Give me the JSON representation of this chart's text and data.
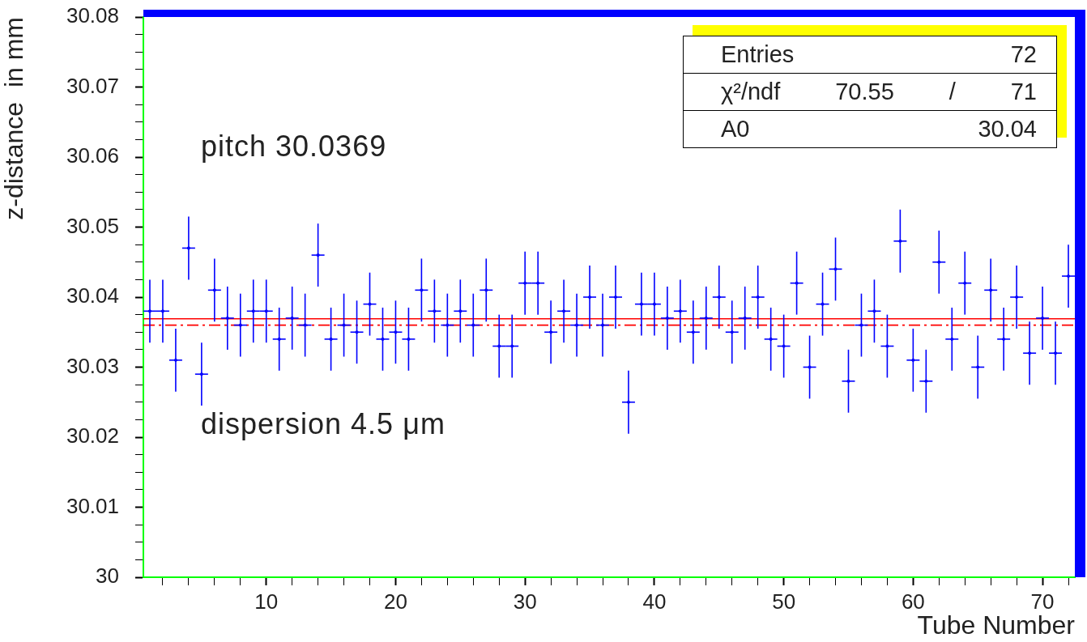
{
  "chart_data": {
    "type": "scatter",
    "xlabel": "Tube Number",
    "ylabel": "z-distance  in mm",
    "x": [
      1,
      2,
      3,
      4,
      5,
      6,
      7,
      8,
      9,
      10,
      11,
      12,
      13,
      14,
      15,
      16,
      17,
      18,
      19,
      20,
      21,
      22,
      23,
      24,
      25,
      26,
      27,
      28,
      29,
      30,
      31,
      32,
      33,
      34,
      35,
      36,
      37,
      38,
      39,
      40,
      41,
      42,
      43,
      44,
      45,
      46,
      47,
      48,
      49,
      50,
      51,
      52,
      53,
      54,
      55,
      56,
      57,
      58,
      59,
      60,
      61,
      62,
      63,
      64,
      65,
      66,
      67,
      68,
      69,
      70,
      71,
      72
    ],
    "series": [
      {
        "color": "#0000ff",
        "values": [
          30.038,
          30.038,
          30.031,
          30.047,
          30.029,
          30.041,
          30.037,
          30.036,
          30.038,
          30.038,
          30.034,
          30.037,
          30.036,
          30.046,
          30.034,
          30.036,
          30.035,
          30.039,
          30.034,
          30.035,
          30.034,
          30.041,
          30.038,
          30.036,
          30.038,
          30.036,
          30.041,
          30.033,
          30.033,
          30.042,
          30.042,
          30.035,
          30.038,
          30.036,
          30.04,
          30.036,
          30.04,
          30.025,
          30.039,
          30.039,
          30.037,
          30.038,
          30.035,
          30.037,
          30.04,
          30.035,
          30.037,
          30.04,
          30.034,
          30.033,
          30.042,
          30.03,
          30.039,
          30.044,
          30.028,
          30.036,
          30.038,
          30.033,
          30.048,
          30.031,
          30.028,
          30.045,
          30.034,
          30.042,
          30.03,
          30.041,
          30.034,
          30.04,
          30.032,
          30.037,
          30.032,
          30.043
        ],
        "errors": [
          0.0045,
          0.0045,
          0.0045,
          0.0045,
          0.0045,
          0.0045,
          0.0045,
          0.0045,
          0.0045,
          0.0045,
          0.0045,
          0.0045,
          0.0045,
          0.0045,
          0.0045,
          0.0045,
          0.0045,
          0.0045,
          0.0045,
          0.0045,
          0.0045,
          0.0045,
          0.0045,
          0.0045,
          0.0045,
          0.0045,
          0.0045,
          0.0045,
          0.0045,
          0.0045,
          0.0045,
          0.0045,
          0.0045,
          0.0045,
          0.0045,
          0.0045,
          0.0045,
          0.0045,
          0.0045,
          0.0045,
          0.0045,
          0.0045,
          0.0045,
          0.0045,
          0.0045,
          0.0045,
          0.0045,
          0.0045,
          0.0045,
          0.0045,
          0.0045,
          0.0045,
          0.0045,
          0.0045,
          0.0045,
          0.0045,
          0.0045,
          0.0045,
          0.0045,
          0.0045,
          0.0045,
          0.0045,
          0.0045,
          0.0045,
          0.0045,
          0.0045,
          0.0045,
          0.0045,
          0.0045,
          0.0045,
          0.0045,
          0.0045
        ],
        "xerrors": [
          0.5,
          0.5,
          0.5,
          0.5,
          0.5,
          0.5,
          0.5,
          0.5,
          0.5,
          0.5,
          0.5,
          0.5,
          0.5,
          0.5,
          0.5,
          0.5,
          0.5,
          0.5,
          0.5,
          0.5,
          0.5,
          0.5,
          0.5,
          0.5,
          0.5,
          0.5,
          0.5,
          0.5,
          0.5,
          0.5,
          0.5,
          0.5,
          0.5,
          0.5,
          0.5,
          0.5,
          0.5,
          0.5,
          0.5,
          0.5,
          0.5,
          0.5,
          0.5,
          0.5,
          0.5,
          0.5,
          0.5,
          0.5,
          0.5,
          0.5,
          0.5,
          0.5,
          0.5,
          0.5,
          0.5,
          0.5,
          0.5,
          0.5,
          0.5,
          0.5,
          0.5,
          0.5,
          0.5,
          0.5,
          0.5,
          0.5,
          0.5,
          0.5,
          0.5,
          0.5,
          0.5,
          0.5
        ]
      }
    ],
    "legend": false,
    "grid": false,
    "xlim": [
      0.5,
      72.5
    ],
    "xticks": [
      {
        "value": 2,
        "label": null
      },
      {
        "value": 4,
        "label": null
      },
      {
        "value": 6,
        "label": null
      },
      {
        "value": 8,
        "label": null
      },
      10,
      {
        "value": 12,
        "label": null
      },
      {
        "value": 14,
        "label": null
      },
      {
        "value": 16,
        "label": null
      },
      {
        "value": 18,
        "label": null
      },
      20,
      {
        "value": 22,
        "label": null
      },
      {
        "value": 24,
        "label": null
      },
      {
        "value": 26,
        "label": null
      },
      {
        "value": 28,
        "label": null
      },
      30,
      {
        "value": 32,
        "label": null
      },
      {
        "value": 34,
        "label": null
      },
      {
        "value": 36,
        "label": null
      },
      {
        "value": 38,
        "label": null
      },
      40,
      {
        "value": 42,
        "label": null
      },
      {
        "value": 44,
        "label": null
      },
      {
        "value": 46,
        "label": null
      },
      {
        "value": 48,
        "label": null
      },
      50,
      {
        "value": 52,
        "label": null
      },
      {
        "value": 54,
        "label": null
      },
      {
        "value": 56,
        "label": null
      },
      {
        "value": 58,
        "label": null
      },
      60,
      {
        "value": 62,
        "label": null
      },
      {
        "value": 64,
        "label": null
      },
      {
        "value": 66,
        "label": null
      },
      {
        "value": 68,
        "label": null
      },
      70,
      {
        "value": 72,
        "label": null
      }
    ],
    "ylim": [
      30,
      30.08
    ],
    "yticks": [
      30,
      {
        "value": 30.0025,
        "label": null
      },
      {
        "value": 30.005,
        "label": null
      },
      {
        "value": 30.0075,
        "label": null
      },
      30.01,
      {
        "value": 30.0125,
        "label": null
      },
      {
        "value": 30.015,
        "label": null
      },
      {
        "value": 30.0175,
        "label": null
      },
      30.02,
      {
        "value": 30.0225,
        "label": null
      },
      {
        "value": 30.025,
        "label": null
      },
      {
        "value": 30.0275,
        "label": null
      },
      30.03,
      {
        "value": 30.0325,
        "label": null
      },
      {
        "value": 30.035,
        "label": null
      },
      {
        "value": 30.0375,
        "label": null
      },
      30.04,
      {
        "value": 30.0425,
        "label": null
      },
      {
        "value": 30.045,
        "label": null
      },
      {
        "value": 30.0475,
        "label": null
      },
      30.05,
      {
        "value": 30.0525,
        "label": null
      },
      {
        "value": 30.055,
        "label": null
      },
      {
        "value": 30.0575,
        "label": null
      },
      30.06,
      {
        "value": 30.0625,
        "label": null
      },
      {
        "value": 30.065,
        "label": null
      },
      {
        "value": 30.0675,
        "label": null
      },
      30.07,
      {
        "value": 30.0725,
        "label": null
      },
      {
        "value": 30.075,
        "label": null
      },
      {
        "value": 30.0775,
        "label": null
      },
      30.08
    ],
    "ref_lines": [
      {
        "axis": "y",
        "value": 30.0369,
        "color": "#ff0000",
        "line_style": "solid"
      },
      {
        "axis": "y",
        "value": 30.036,
        "color": "#ff0000",
        "line_style": "dashed"
      }
    ],
    "annotations": [
      "pitch 30.0369",
      "dispersion 4.5 μm",
      "Entries 72",
      "χ²/ndf 70.55 / 71",
      "A0 30.04"
    ]
  }
}
